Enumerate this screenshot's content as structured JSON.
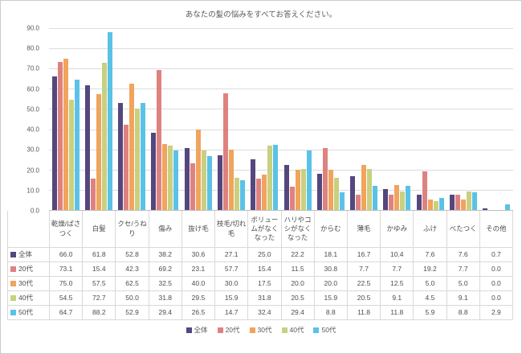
{
  "title": "あなたの髪の悩みをすべてお答えください。",
  "chart_data": {
    "type": "bar",
    "title": "あなたの髪の悩みをすべてお答えください。",
    "categories": [
      "乾燥/ぱさつく",
      "白髪",
      "クセ/うねり",
      "傷み",
      "抜け毛",
      "枝毛/切れ毛",
      "ボリュームがなくなった",
      "ハリやコシがなくなった",
      "からむ",
      "薄毛",
      "かゆみ",
      "ふけ",
      "べたつく",
      "その他"
    ],
    "series": [
      {
        "name": "全体",
        "color": "#54477d",
        "values": [
          66.0,
          61.8,
          52.8,
          38.2,
          30.6,
          27.1,
          25.0,
          22.2,
          18.1,
          16.7,
          10.4,
          7.6,
          7.6,
          0.7
        ]
      },
      {
        "name": "20代",
        "color": "#de8280",
        "values": [
          73.1,
          15.4,
          42.3,
          69.2,
          23.1,
          57.7,
          15.4,
          11.5,
          30.8,
          7.7,
          7.7,
          19.2,
          7.7,
          0.0
        ]
      },
      {
        "name": "30代",
        "color": "#f0a45c",
        "values": [
          75.0,
          57.5,
          62.5,
          32.5,
          40.0,
          30.0,
          17.5,
          20.0,
          20.0,
          22.5,
          12.5,
          5.0,
          5.0,
          0.0
        ]
      },
      {
        "name": "40代",
        "color": "#c9d07f",
        "values": [
          54.5,
          72.7,
          50.0,
          31.8,
          29.5,
          15.9,
          31.8,
          20.5,
          15.9,
          20.5,
          9.1,
          4.5,
          9.1,
          0.0
        ]
      },
      {
        "name": "50代",
        "color": "#5bc2e7",
        "values": [
          64.7,
          88.2,
          52.9,
          29.4,
          26.5,
          14.7,
          32.4,
          29.4,
          8.8,
          11.8,
          11.8,
          5.9,
          8.8,
          2.9
        ]
      }
    ],
    "ylim": [
      0,
      90
    ],
    "y_tick_labels": [
      "90.0",
      "80.0",
      "70.0",
      "60.0",
      "50.0",
      "40.0",
      "30.0",
      "20.0",
      "10.0",
      "0.0"
    ],
    "grid": true,
    "legend_position": "bottom",
    "table_shown": true
  }
}
